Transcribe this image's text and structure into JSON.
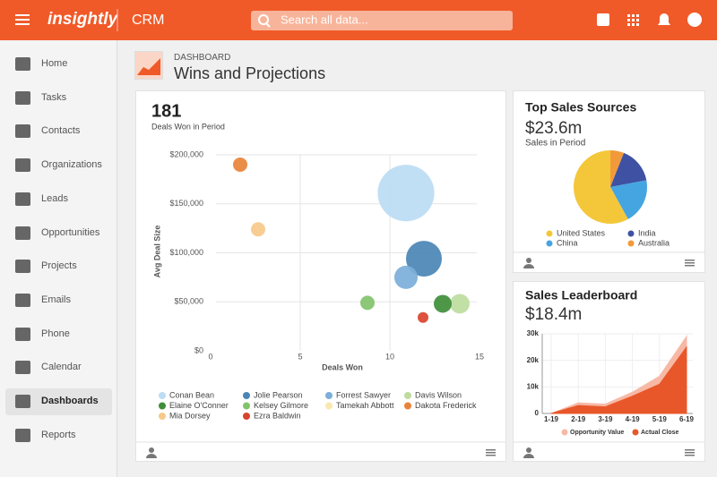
{
  "header": {
    "logo": "insightly",
    "app": "CRM",
    "search_placeholder": "Search all data..."
  },
  "nav": {
    "items": [
      "Home",
      "Tasks",
      "Contacts",
      "Organizations",
      "Leads",
      "Opportunities",
      "Projects",
      "Emails",
      "Phone",
      "Calendar",
      "Dashboards",
      "Reports"
    ]
  },
  "page": {
    "eyebrow": "DASHBOARD",
    "title": "Wins and Projections"
  },
  "chart_data": [
    {
      "type": "bubble",
      "kpi": "181",
      "kpi_label": "Deals Won in Period",
      "xlabel": "Deals Won",
      "ylabel": "Avg Deal Size",
      "xlim": [
        0,
        15
      ],
      "xticks": [
        0,
        5,
        10,
        15
      ],
      "ylim": [
        0,
        200000
      ],
      "yticks": [
        {
          "value": 0,
          "label": "$0"
        },
        {
          "value": 50000,
          "label": "$50,000"
        },
        {
          "value": 100000,
          "label": "$100,000"
        },
        {
          "value": 150000,
          "label": "$150,000"
        },
        {
          "value": 200000,
          "label": "$200,000"
        }
      ],
      "grid": true,
      "series": [
        {
          "name": "Conan Bean",
          "color": "#bcdcf3",
          "x": [
            10.9
          ],
          "values": [
            161000
          ],
          "sizes": [
            1000
          ]
        },
        {
          "name": "Jolie Pearson",
          "color": "#4a86b5",
          "x": [
            11.9
          ],
          "values": [
            94000
          ],
          "sizes": [
            400
          ]
        },
        {
          "name": "Forrest Sawyer",
          "color": "#7bafd9",
          "x": [
            10.9
          ],
          "values": [
            75000
          ],
          "sizes": [
            170
          ]
        },
        {
          "name": "Davis Wilson",
          "color": "#bddc9e",
          "x": [
            13.9
          ],
          "values": [
            48000
          ],
          "sizes": [
            120
          ]
        },
        {
          "name": "Elaine O'Conner",
          "color": "#3f8e3a",
          "x": [
            12.95
          ],
          "values": [
            48000
          ],
          "sizes": [
            100
          ]
        },
        {
          "name": "Kelsey Gilmore",
          "color": "#82c36b",
          "x": [
            8.75
          ],
          "values": [
            49000
          ],
          "sizes": [
            64
          ]
        },
        {
          "name": "Tamekah Abbott",
          "color": "#f8e8b0"
        },
        {
          "name": "Dakota Frederick",
          "color": "#e8833a",
          "x": [
            1.65
          ],
          "values": [
            190000
          ],
          "sizes": [
            64
          ]
        },
        {
          "name": "Mia Dorsey",
          "color": "#f7c98a",
          "x": [
            2.65
          ],
          "values": [
            124000
          ],
          "sizes": [
            64
          ]
        },
        {
          "name": "Ezra Baldwin",
          "color": "#d9432e",
          "x": [
            11.85
          ],
          "values": [
            34000
          ],
          "sizes": [
            36
          ]
        }
      ]
    },
    {
      "type": "pie",
      "title": "Top Sales Sources",
      "kpi": "$23.6m",
      "kpi_label": "Sales in Period",
      "categories": [
        "United States",
        "India",
        "China",
        "Australia"
      ],
      "values": [
        58,
        16,
        20,
        6
      ],
      "colors": [
        "#f4c73a",
        "#3f51a3",
        "#45a5e0",
        "#f29a3a"
      ]
    },
    {
      "type": "area",
      "title": "Sales Leaderboard",
      "kpi": "$18.4m",
      "categories": [
        "1-19",
        "2-19",
        "3-19",
        "4-19",
        "5-19",
        "6-19"
      ],
      "ylim": [
        0,
        30000
      ],
      "yticks": [
        0,
        {
          "value": 10000,
          "label": "10k"
        },
        {
          "value": 20000,
          "label": "20k"
        },
        {
          "value": 30000,
          "label": "30k"
        }
      ],
      "grid": true,
      "series": [
        {
          "name": "Opportunity Value",
          "color": "#f7b9a5",
          "values": [
            0,
            4000,
            3500,
            8000,
            14000,
            29000
          ]
        },
        {
          "name": "Actual Close",
          "color": "#e8572a",
          "values": [
            0,
            3000,
            2500,
            6500,
            11000,
            25000
          ]
        }
      ]
    }
  ]
}
